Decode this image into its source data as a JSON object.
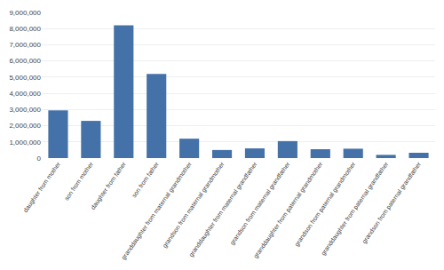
{
  "chart_data": {
    "type": "bar",
    "categories": [
      "daughter from mother",
      "son from mother",
      "daughter from father",
      "son from father",
      "granddaughter from maternal grandmother",
      "grandson from maternal grandmother",
      "granddaughter from maternal grandfather",
      "grandson from maternal grandfather",
      "granddaughter from paternal grandmother",
      "grandson from paternal grandmother",
      "granddaughter from paternal grandfather",
      "grandson from paternal grandfather"
    ],
    "values": [
      2950000,
      2300000,
      8200000,
      5200000,
      1200000,
      500000,
      600000,
      1050000,
      550000,
      580000,
      200000,
      330000
    ],
    "color": "#4472a8",
    "ylim": [
      0,
      9000000
    ],
    "yticks": [
      0,
      {
        "value": 1000000,
        "label": "1,000,000"
      },
      {
        "value": 2000000,
        "label": "2,000,000"
      },
      {
        "value": 3000000,
        "label": "3,000,000"
      },
      {
        "value": 4000000,
        "label": "4,000,000"
      },
      {
        "value": 5000000,
        "label": "5,000,000"
      },
      {
        "value": 6000000,
        "label": "6,000,000"
      },
      {
        "value": 7000000,
        "label": "7,000,000"
      },
      {
        "value": 8000000,
        "label": "8,000,000"
      },
      {
        "value": 9000000,
        "label": "9,000,000"
      }
    ],
    "grid": true
  }
}
